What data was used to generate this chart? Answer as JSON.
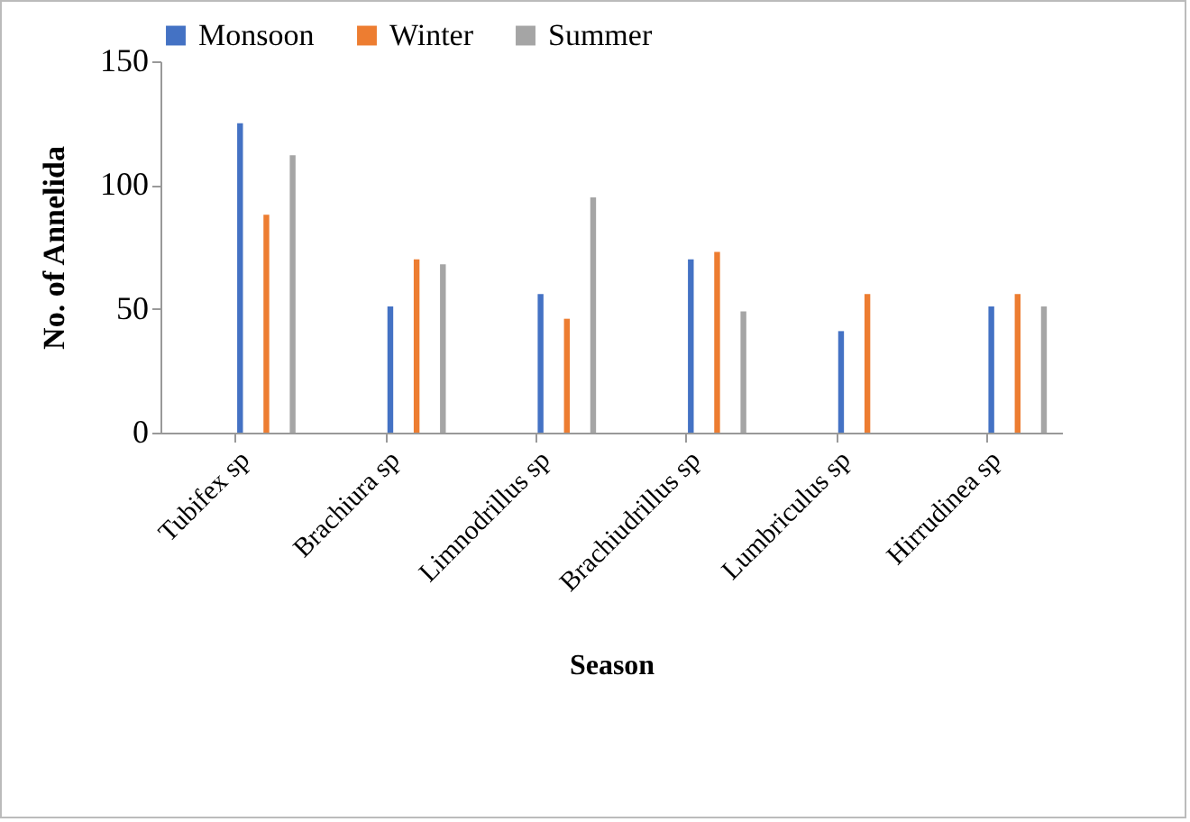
{
  "chart_data": {
    "type": "bar",
    "xlabel": "Season",
    "ylabel": "No. of Annelida",
    "categories": [
      "Tubifex sp",
      "Brachiura sp",
      "Limnodrillus sp",
      "Brachiudrillus sp",
      "Lumbriculus sp",
      "Hirrudinea sp"
    ],
    "series": [
      {
        "name": "Monsoon",
        "color": "#4472c4",
        "values": [
          125,
          51,
          56,
          70,
          41,
          51
        ]
      },
      {
        "name": "Winter",
        "color": "#ed7d31",
        "values": [
          88,
          70,
          46,
          73,
          56,
          56
        ]
      },
      {
        "name": "Summer",
        "color": "#a5a5a5",
        "values": [
          112,
          68,
          95,
          49,
          0,
          51
        ]
      }
    ],
    "ylim": [
      0,
      150
    ],
    "yticks": [
      0,
      50,
      100,
      150
    ],
    "grid": false,
    "legend": "top"
  }
}
